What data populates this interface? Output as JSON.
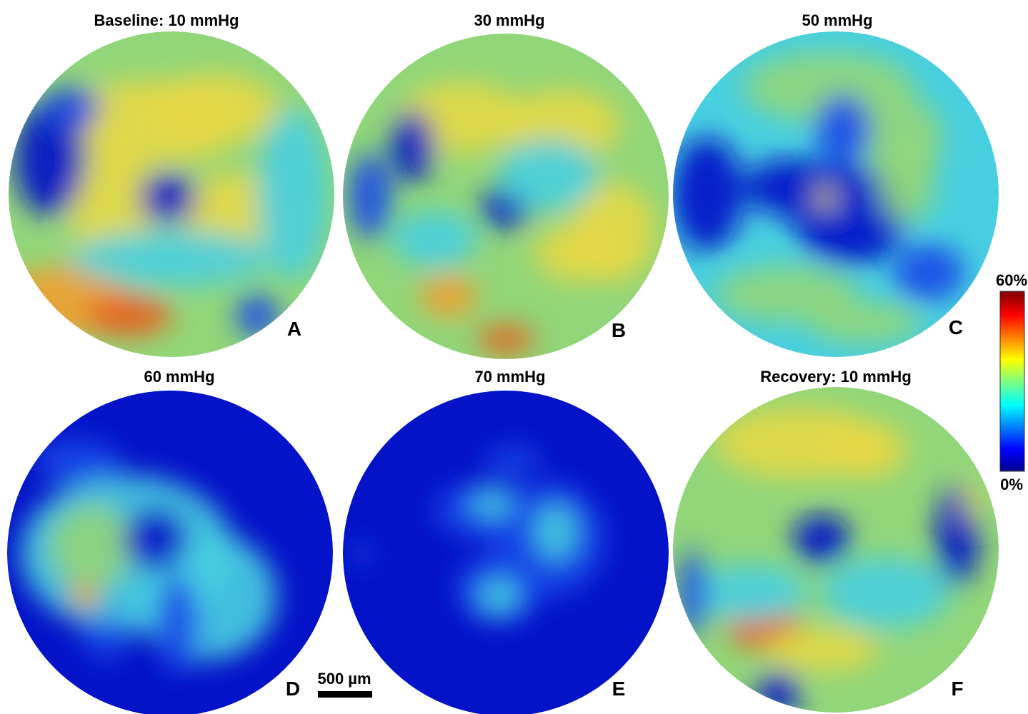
{
  "panels": [
    {
      "title": "Baseline: 10 mmHg",
      "letter": "A"
    },
    {
      "title": "30 mmHg",
      "letter": "B"
    },
    {
      "title": "50 mmHg",
      "letter": "C"
    },
    {
      "title": "60 mmHg",
      "letter": "D"
    },
    {
      "title": "70 mmHg",
      "letter": "E"
    },
    {
      "title": "Recovery: 10 mmHg",
      "letter": "F"
    }
  ],
  "colorbar": {
    "max_label": "60%",
    "min_label": "0%"
  },
  "scale_bar": {
    "label": "500 µm"
  }
}
